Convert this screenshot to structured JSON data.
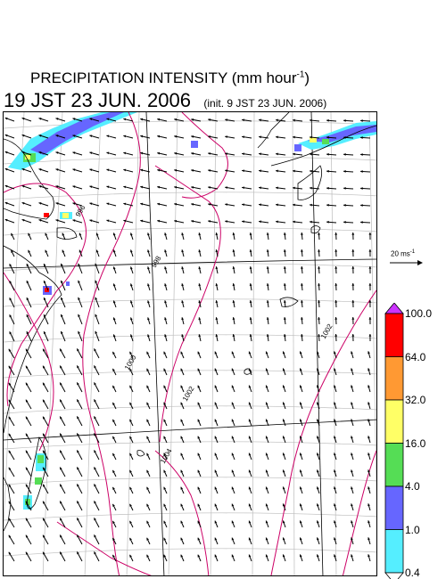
{
  "header": {
    "title_main": "PRECIPITATION INTENSITY (mm hour",
    "title_sup": "-1",
    "title_end": ")",
    "valid_time": "19 JST 23 JUN. 2006",
    "init_time": "(init. 9 JST 23 JUN. 2006)"
  },
  "reference_vector": {
    "label": "20 ms",
    "label_sup": "-1"
  },
  "colorbar": {
    "levels": [
      "100.0",
      "64.0",
      "32.0",
      "16.0",
      "4.0",
      "1.0",
      "0.4"
    ],
    "colors": [
      "#ff0000",
      "#ff9933",
      "#ffff66",
      "#55dd55",
      "#6666ff",
      "#55eeff"
    ],
    "over_color": "#cc33ff",
    "under_color": "#ffffff"
  },
  "isobars": {
    "color": "#cc0066",
    "labels": [
      "996",
      "998",
      "1000",
      "1002",
      "1004",
      "1002"
    ]
  },
  "map": {
    "grid_color": "#bbbbbb",
    "coast_color": "#000000",
    "vector_color": "#000000"
  }
}
